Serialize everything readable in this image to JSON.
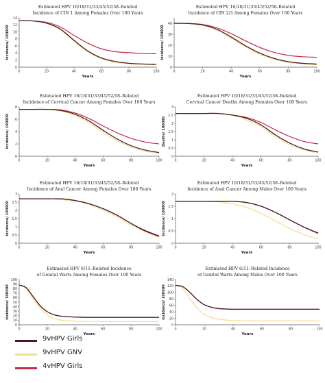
{
  "colors": {
    "9vHPV Girls": "#4a1a22",
    "9vHPV GNV": "#f2df8a",
    "4vHPV Girls": "#c2284a"
  },
  "legend": [
    {
      "name": "9vHPV Girls"
    },
    {
      "name": "9vHPV GNV"
    },
    {
      "name": "4vHPV Girls"
    }
  ],
  "chart_data": [
    {
      "type": "line",
      "title": [
        "Estimated HPV 16/18/31/33/45/52/58–Related",
        "Incidence of CIN 1 Among Females Over 100 Years"
      ],
      "xlabel": "Years",
      "ylabel": "Incidence/ 100000",
      "xlim": [
        0,
        100
      ],
      "ylim": [
        0,
        14
      ],
      "yticks": [
        0,
        2,
        4,
        6,
        8,
        10,
        12,
        14
      ],
      "xticks": [
        0,
        20,
        40,
        60,
        80,
        100
      ],
      "x": [
        0,
        10,
        20,
        30,
        40,
        50,
        60,
        70,
        80,
        90,
        100
      ],
      "series": [
        {
          "name": "9vHPV Girls",
          "values": [
            13.2,
            13.1,
            12.5,
            10.8,
            7.6,
            4.6,
            2.6,
            1.6,
            1.1,
            0.9,
            0.8
          ]
        },
        {
          "name": "9vHPV GNV",
          "values": [
            13.2,
            13.1,
            12.4,
            10.6,
            7.3,
            4.3,
            2.4,
            1.4,
            1.0,
            0.8,
            0.7
          ]
        },
        {
          "name": "4vHPV Girls",
          "values": [
            13.2,
            13.1,
            12.7,
            11.4,
            9.0,
            6.8,
            5.2,
            4.4,
            4.1,
            3.9,
            3.8
          ]
        }
      ]
    },
    {
      "type": "line",
      "title": [
        "Estimated HPV 16/18/31/33/45/52/58–Related",
        "Incidence of CIN 2/3 Among Females Over 100 Years"
      ],
      "xlabel": "Years",
      "ylabel": "Incidence/ 100000",
      "xlim": [
        0,
        100
      ],
      "ylim": [
        0,
        45
      ],
      "yticks": [
        0,
        10,
        20,
        30,
        40
      ],
      "xticks": [
        0,
        20,
        40,
        60,
        80,
        100
      ],
      "x": [
        0,
        10,
        20,
        30,
        40,
        50,
        60,
        70,
        80,
        90,
        100
      ],
      "series": [
        {
          "name": "9vHPV Girls",
          "values": [
            40,
            39.8,
            38.5,
            34.5,
            27.5,
            19.5,
            12.8,
            8.0,
            5.0,
            3.5,
            2.8
          ]
        },
        {
          "name": "9vHPV GNV",
          "values": [
            40,
            39.8,
            38.2,
            33.8,
            26.5,
            18.5,
            11.8,
            7.2,
            4.3,
            2.9,
            2.2
          ]
        },
        {
          "name": "4vHPV Girls",
          "values": [
            40,
            39.8,
            38.9,
            35.8,
            30.5,
            24.0,
            18.0,
            13.5,
            10.8,
            9.5,
            9.0
          ]
        }
      ]
    },
    {
      "type": "line",
      "title": [
        "Estimated HPV 16/18/31/33/45/52/58–Related",
        "Incidence of Cervical Cancer Among Females Over 100 Years"
      ],
      "xlabel": "Years",
      "ylabel": "Incidence/ 100000",
      "xlim": [
        0,
        100
      ],
      "ylim": [
        0,
        8
      ],
      "yticks": [
        0,
        2,
        4,
        6,
        8
      ],
      "xticks": [
        0,
        20,
        40,
        60,
        80,
        100
      ],
      "x": [
        0,
        10,
        20,
        30,
        40,
        50,
        60,
        70,
        80,
        90,
        100
      ],
      "series": [
        {
          "name": "9vHPV Girls",
          "values": [
            7.6,
            7.6,
            7.6,
            7.4,
            6.8,
            5.7,
            4.2,
            2.8,
            1.7,
            1.0,
            0.6
          ]
        },
        {
          "name": "9vHPV GNV",
          "values": [
            7.6,
            7.6,
            7.6,
            7.3,
            6.6,
            5.4,
            3.9,
            2.5,
            1.5,
            0.8,
            0.5
          ]
        },
        {
          "name": "4vHPV Girls",
          "values": [
            7.6,
            7.6,
            7.6,
            7.5,
            7.0,
            6.1,
            4.9,
            3.8,
            2.9,
            2.3,
            2.0
          ]
        }
      ]
    },
    {
      "type": "line",
      "title": [
        "Estimated HPV 16/18/31/33/45/52/58–Related",
        "Cervical Cancer Deaths Among Females Over 100 Years"
      ],
      "xlabel": "Years",
      "ylabel": "Deaths/ 100000",
      "xlim": [
        0,
        100
      ],
      "ylim": [
        0,
        3.0
      ],
      "yticks": [
        0,
        0.5,
        1.0,
        1.5,
        2.0,
        2.5,
        3.0
      ],
      "xticks": [
        0,
        20,
        40,
        60,
        80,
        100
      ],
      "x": [
        0,
        10,
        20,
        30,
        40,
        50,
        60,
        70,
        80,
        90,
        100
      ],
      "series": [
        {
          "name": "9vHPV Girls",
          "values": [
            2.6,
            2.6,
            2.6,
            2.6,
            2.5,
            2.3,
            1.9,
            1.3,
            0.8,
            0.45,
            0.25
          ]
        },
        {
          "name": "9vHPV GNV",
          "values": [
            2.6,
            2.6,
            2.6,
            2.6,
            2.5,
            2.2,
            1.8,
            1.2,
            0.7,
            0.38,
            0.2
          ]
        },
        {
          "name": "4vHPV Girls",
          "values": [
            2.6,
            2.6,
            2.6,
            2.6,
            2.5,
            2.35,
            2.05,
            1.6,
            1.2,
            0.9,
            0.75
          ]
        }
      ]
    },
    {
      "type": "line",
      "title": [
        "Estimated HPV 16/18/31/33/45/52/58–Related",
        "Incidence of Anal Cancer Among Females Over 100 Years"
      ],
      "xlabel": "Years",
      "ylabel": "Incidence/ 100000",
      "xlim": [
        0,
        100
      ],
      "ylim": [
        0,
        3.0
      ],
      "yticks": [
        0,
        0.5,
        1.0,
        1.5,
        2.0,
        2.5,
        3.0
      ],
      "xticks": [
        0,
        20,
        40,
        60,
        80,
        100
      ],
      "x": [
        0,
        10,
        20,
        30,
        40,
        50,
        60,
        70,
        80,
        90,
        100
      ],
      "series": [
        {
          "name": "9vHPV Girls",
          "values": [
            2.7,
            2.7,
            2.7,
            2.7,
            2.6,
            2.4,
            2.1,
            1.7,
            1.2,
            0.75,
            0.42
          ]
        },
        {
          "name": "9vHPV GNV",
          "values": [
            2.7,
            2.7,
            2.7,
            2.65,
            2.55,
            2.35,
            2.0,
            1.6,
            1.1,
            0.7,
            0.38
          ]
        },
        {
          "name": "4vHPV Girls",
          "values": [
            2.7,
            2.7,
            2.7,
            2.7,
            2.6,
            2.4,
            2.1,
            1.7,
            1.2,
            0.78,
            0.45
          ]
        }
      ]
    },
    {
      "type": "line",
      "title": [
        "Estimated HPV 16/18/31/33/45/52/58–Related",
        "Incidence of Anal Cancer Among Males Over 100 Years"
      ],
      "xlabel": "Years",
      "ylabel": "Incidence/ 100000",
      "xlim": [
        0,
        100
      ],
      "ylim": [
        0,
        2.0
      ],
      "yticks": [
        0,
        0.5,
        1.0,
        1.5,
        2.0
      ],
      "xticks": [
        0,
        20,
        40,
        60,
        80,
        100
      ],
      "x": [
        0,
        10,
        20,
        30,
        40,
        50,
        60,
        70,
        80,
        90,
        100
      ],
      "series": [
        {
          "name": "9vHPV Girls",
          "values": [
            1.7,
            1.7,
            1.7,
            1.7,
            1.7,
            1.65,
            1.5,
            1.25,
            0.95,
            0.65,
            0.4
          ]
        },
        {
          "name": "9vHPV GNV",
          "values": [
            1.7,
            1.7,
            1.7,
            1.68,
            1.6,
            1.45,
            1.2,
            0.9,
            0.6,
            0.35,
            0.18
          ]
        },
        {
          "name": "4vHPV Girls",
          "values": [
            1.7,
            1.7,
            1.7,
            1.7,
            1.7,
            1.65,
            1.5,
            1.25,
            0.95,
            0.66,
            0.42
          ]
        }
      ]
    },
    {
      "type": "line",
      "title": [
        "Estimated HPV 6/11–Related Incidence",
        "of Genital Warts Among Females Over 100 Years"
      ],
      "xlabel": "Years",
      "ylabel": "Incidence/ 100000",
      "xlim": [
        0,
        100
      ],
      "ylim": [
        0,
        100
      ],
      "yticks": [
        0,
        10,
        20,
        30,
        40,
        50,
        60,
        70,
        80,
        90,
        100
      ],
      "xticks": [
        0,
        20,
        40,
        60,
        80,
        100
      ],
      "x": [
        0,
        5,
        10,
        15,
        20,
        25,
        30,
        40,
        50,
        60,
        70,
        80,
        90,
        100
      ],
      "series": [
        {
          "name": "9vHPV Girls",
          "values": [
            88,
            82,
            62,
            42,
            29,
            22,
            19,
            17,
            16.5,
            16.5,
            16.5,
            16.5,
            16.5,
            16.5
          ]
        },
        {
          "name": "9vHPV GNV",
          "values": [
            88,
            80,
            57,
            36,
            22,
            14,
            10,
            8,
            7.5,
            7,
            7,
            7,
            7,
            7
          ]
        },
        {
          "name": "4vHPV Girls",
          "values": [
            88,
            82,
            62,
            42,
            29,
            22,
            19,
            17,
            16.5,
            16.5,
            16.5,
            16.5,
            16.5,
            16.5
          ]
        }
      ]
    },
    {
      "type": "line",
      "title": [
        "Estimated HPV 6/11–Related Incidence",
        "of Genital Warts Among Males Over 100 Years"
      ],
      "xlabel": "Years",
      "ylabel": "Incidence/ 100000",
      "xlim": [
        0,
        100
      ],
      "ylim": [
        0,
        140
      ],
      "yticks": [
        0,
        20,
        40,
        60,
        80,
        100,
        120,
        140
      ],
      "xticks": [
        0,
        20,
        40,
        60,
        80,
        100
      ],
      "x": [
        0,
        5,
        10,
        15,
        20,
        25,
        30,
        40,
        50,
        60,
        70,
        80,
        90,
        100
      ],
      "series": [
        {
          "name": "9vHPV Girls",
          "values": [
            122,
            118,
            100,
            78,
            62,
            54,
            50,
            48,
            48,
            48,
            48,
            48,
            48,
            48
          ]
        },
        {
          "name": "9vHPV GNV",
          "values": [
            122,
            112,
            80,
            52,
            32,
            22,
            17,
            13,
            12,
            12,
            12,
            12,
            12,
            12
          ]
        },
        {
          "name": "4vHPV Girls",
          "values": [
            122,
            118,
            100,
            78,
            62,
            54,
            50,
            48,
            48,
            48,
            48,
            48,
            48,
            48
          ]
        }
      ]
    }
  ]
}
